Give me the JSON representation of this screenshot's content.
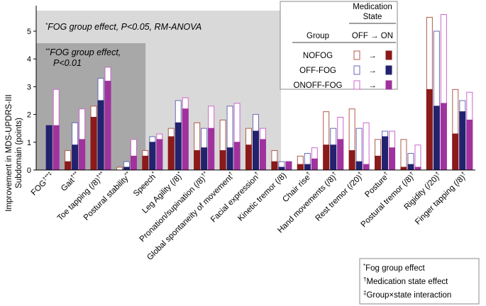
{
  "chart_data": {
    "type": "bar",
    "ylabel": "Improvement in MDS-UPDRS-III Subdomain (points)",
    "ylabel_lines": [
      "Improvement in MDS-UPDRS-III",
      "Subdomain (points)"
    ],
    "ylim": [
      0,
      5.8
    ],
    "yticks": [
      0,
      1,
      2,
      3,
      4,
      5
    ],
    "series_names": [
      "NOFOG",
      "OFF-FOG",
      "ONOFF-FOG"
    ],
    "colors": {
      "NOFOG": "#8b1a1a",
      "OFF-FOG": "#22226e",
      "ONOFF-FOG": "#a0329e"
    },
    "categories": [
      {
        "label": "FOG",
        "marks": "†**‡",
        "off": [
          0,
          1.6,
          2.9
        ],
        "on": [
          0,
          1.6,
          1.6
        ]
      },
      {
        "label": "Gait",
        "marks": "†**",
        "off": [
          0.7,
          1.7,
          2.2
        ],
        "on": [
          0.3,
          0.9,
          1.1
        ]
      },
      {
        "label": "Toe tapping (/8)",
        "marks": "†**",
        "off": [
          2.3,
          3.3,
          3.7
        ],
        "on": [
          1.9,
          2.5,
          3.2
        ]
      },
      {
        "label": "Postural stability",
        "marks": "**",
        "off": [
          0.1,
          0.3,
          1.1
        ],
        "on": [
          0.0,
          0.1,
          0.5
        ]
      },
      {
        "label": "Speech",
        "marks": "*",
        "off": [
          0.7,
          1.2,
          1.3
        ],
        "on": [
          0.5,
          1.0,
          1.1
        ]
      },
      {
        "label": "Leg Agility (/8)",
        "marks": "*",
        "off": [
          1.5,
          2.5,
          2.6
        ],
        "on": [
          1.2,
          1.7,
          2.2
        ]
      },
      {
        "label": "Pronation/supination (/8)",
        "marks": "†*",
        "off": [
          1.7,
          1.5,
          2.3
        ],
        "on": [
          0.7,
          0.8,
          1.5
        ]
      },
      {
        "label": "Global spontaneity of movement",
        "marks": "†",
        "off": [
          1.8,
          2.3,
          2.4
        ],
        "on": [
          0.7,
          0.8,
          1.0
        ]
      },
      {
        "label": "Facial expression",
        "marks": "†",
        "off": [
          1.5,
          2.0,
          1.5
        ],
        "on": [
          0.9,
          1.4,
          1.1
        ]
      },
      {
        "label": "Kinetic tremor (/8)",
        "marks": "",
        "off": [
          0.7,
          0.3,
          0.3
        ],
        "on": [
          0.3,
          0.1,
          0.3
        ]
      },
      {
        "label": "Chair rise",
        "marks": "†",
        "off": [
          0.5,
          0.6,
          0.8
        ],
        "on": [
          0.2,
          0.2,
          0.4
        ]
      },
      {
        "label": "Hand movements (/8)",
        "marks": "†",
        "off": [
          2.1,
          1.5,
          1.9
        ],
        "on": [
          0.9,
          0.9,
          1.1
        ]
      },
      {
        "label": "Rest tremor (/20)",
        "marks": "†",
        "off": [
          2.2,
          1.5,
          1.7
        ],
        "on": [
          0.7,
          0.3,
          0.2
        ]
      },
      {
        "label": "Posture",
        "marks": "†",
        "off": [
          1.1,
          1.4,
          1.4
        ],
        "on": [
          0.5,
          1.2,
          0.8
        ]
      },
      {
        "label": "Postural tremor (/8)",
        "marks": "†",
        "off": [
          1.1,
          0.6,
          0.9
        ],
        "on": [
          0.1,
          0.2,
          0.1
        ]
      },
      {
        "label": "Rigidity (/20)",
        "marks": "†",
        "off": [
          5.5,
          5.0,
          5.6
        ],
        "on": [
          2.9,
          2.3,
          2.4
        ]
      },
      {
        "label": "Finger tapping (/8)",
        "marks": "†",
        "off": [
          2.9,
          2.5,
          2.8
        ],
        "on": [
          1.3,
          2.1,
          1.8
        ]
      }
    ],
    "annotation_light": {
      "mark": "*",
      "text": "FOG group effect, P<0.05, RM-ANOVA"
    },
    "annotation_dark": {
      "mark": "**",
      "line1": "FOG group effect,",
      "line2": "P<0.01"
    },
    "legend": {
      "title_line1": "Medication",
      "title_line2": "State",
      "group_header": "Group",
      "state_header": "OFF → ON",
      "arrow": "→",
      "entries": [
        "NOFOG",
        "OFF-FOG",
        "ONOFF-FOG"
      ]
    },
    "footnote": [
      {
        "mark": "*",
        "text": "Fog group effect"
      },
      {
        "mark": "†",
        "text": "Medication state effect"
      },
      {
        "mark": "‡",
        "text": "Group×state interaction"
      }
    ]
  }
}
